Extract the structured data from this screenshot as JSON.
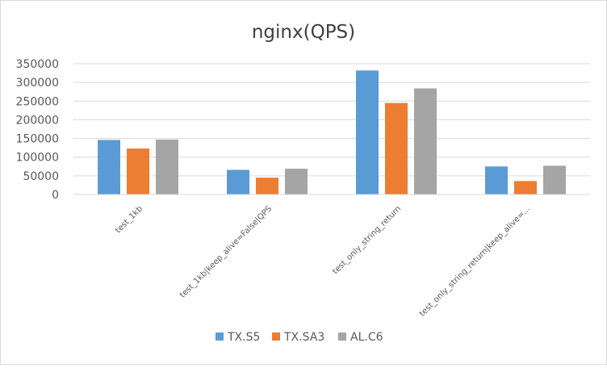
{
  "chart_data": {
    "type": "bar",
    "title": "nginx(QPS)",
    "xlabel": "",
    "ylabel": "",
    "categories": [
      "test_1kb",
      "test_1kb|keep_alive=False|QPS",
      "test_only_string_return",
      "test_only_string_return|keep_alive=..."
    ],
    "series": [
      {
        "name": "TX.S5",
        "color": "#5b9bd5",
        "values": [
          146000,
          66000,
          332000,
          75000
        ]
      },
      {
        "name": "TX.SA3",
        "color": "#ed7d31",
        "values": [
          123000,
          45000,
          245000,
          36000
        ]
      },
      {
        "name": "AL.C6",
        "color": "#a5a5a5",
        "values": [
          147000,
          69000,
          284000,
          77000
        ]
      }
    ],
    "ylim": [
      0,
      350000
    ],
    "y_ticks": [
      "0",
      "50000",
      "100000",
      "150000",
      "200000",
      "250000",
      "300000",
      "350000"
    ],
    "grid": true,
    "legend_position": "bottom"
  }
}
